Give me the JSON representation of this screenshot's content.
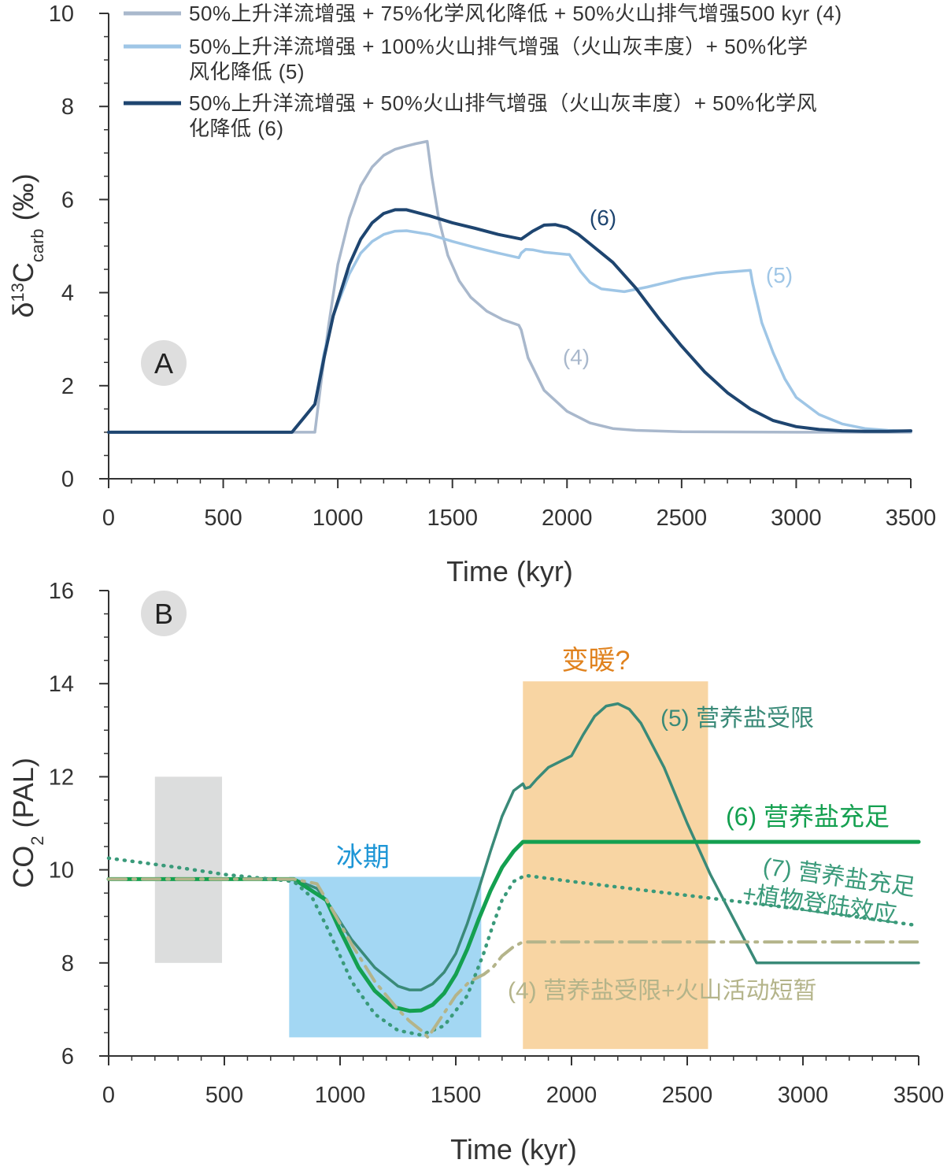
{
  "chart_data": [
    {
      "type": "line",
      "panel_label": "A",
      "xlabel": "Time (kyr)",
      "ylabel": {
        "base": "δ",
        "sup": "13",
        "main": "C",
        "sub": "carb",
        "unit": " (‰)"
      },
      "xlim": [
        0,
        3500
      ],
      "ylim": [
        0,
        10
      ],
      "xticks": [
        "0",
        "500",
        "1000",
        "1500",
        "2000",
        "2500",
        "3000",
        "3500"
      ],
      "yticks": [
        "0",
        "2",
        "4",
        "6",
        "8",
        "10"
      ],
      "legend": [
        {
          "series": 0,
          "lines": [
            "50%上升洋流增强 + 75%化学风化降低 + 50%火山排气增强500 kyr (4)"
          ]
        },
        {
          "series": 1,
          "lines": [
            "50%上升洋流增强 + 100%火山排气增强（火山灰丰度）+ 50%化学",
            "风化降低 (5)"
          ]
        },
        {
          "series": 2,
          "lines": [
            "50%上升洋流增强 + 50%火山排气增强（火山灰丰度）+ 50%化学风",
            "化降低 (6)"
          ]
        }
      ],
      "series": [
        {
          "name": "50%上升洋流增强 + 75%化学风化降低 + 50%火山排气增强500 kyr (4)",
          "label": "(4)",
          "color": "#a9b8cc",
          "x": [
            0,
            800,
            900,
            930,
            960,
            1000,
            1050,
            1100,
            1150,
            1200,
            1250,
            1300,
            1340,
            1390,
            1410,
            1440,
            1480,
            1530,
            1580,
            1650,
            1720,
            1790,
            1800,
            1830,
            1900,
            2000,
            2100,
            2200,
            2300,
            2500,
            3000,
            3500
          ],
          "y": [
            1.0,
            1.0,
            1.0,
            2.2,
            3.3,
            4.6,
            5.6,
            6.3,
            6.7,
            6.95,
            7.08,
            7.15,
            7.2,
            7.25,
            6.5,
            5.6,
            4.8,
            4.25,
            3.9,
            3.6,
            3.42,
            3.3,
            3.2,
            2.6,
            1.9,
            1.45,
            1.2,
            1.08,
            1.04,
            1.01,
            1.0,
            1.0
          ]
        },
        {
          "name": "50%上升洋流增强 + 100%火山排气增强（火山灰丰度）+ 50%化学风化降低 (5)",
          "label": "(5)",
          "color": "#9fc6e6",
          "x": [
            0,
            800,
            900,
            940,
            980,
            1050,
            1100,
            1150,
            1200,
            1250,
            1300,
            1400,
            1500,
            1600,
            1700,
            1790,
            1800,
            1820,
            1850,
            1900,
            2000,
            2010,
            2060,
            2100,
            2150,
            2250,
            2350,
            2500,
            2650,
            2800,
            2810,
            2850,
            2900,
            2950,
            3000,
            3100,
            3200,
            3300,
            3400,
            3500
          ],
          "y": [
            1.0,
            1.0,
            1.6,
            2.7,
            3.5,
            4.4,
            4.85,
            5.1,
            5.25,
            5.32,
            5.33,
            5.25,
            5.1,
            4.97,
            4.85,
            4.75,
            4.85,
            4.93,
            4.92,
            4.87,
            4.82,
            4.82,
            4.45,
            4.22,
            4.08,
            4.02,
            4.12,
            4.3,
            4.42,
            4.48,
            4.2,
            3.35,
            2.7,
            2.15,
            1.75,
            1.38,
            1.18,
            1.08,
            1.04,
            1.02
          ]
        },
        {
          "name": "50%上升洋流增强 + 50%火山排气增强（火山灰丰度）+ 50%化学风化降低 (6)",
          "label": "(6)",
          "color": "#1e4570",
          "x": [
            0,
            800,
            850,
            900,
            940,
            980,
            1050,
            1100,
            1150,
            1200,
            1250,
            1300,
            1400,
            1500,
            1600,
            1700,
            1800,
            1850,
            1900,
            1950,
            2000,
            2050,
            2100,
            2200,
            2300,
            2400,
            2500,
            2600,
            2700,
            2800,
            2900,
            3000,
            3100,
            3200,
            3300,
            3400,
            3500
          ],
          "y": [
            1.0,
            1.0,
            1.3,
            1.6,
            2.6,
            3.5,
            4.6,
            5.15,
            5.5,
            5.7,
            5.78,
            5.78,
            5.65,
            5.5,
            5.38,
            5.25,
            5.15,
            5.32,
            5.45,
            5.46,
            5.4,
            5.25,
            5.05,
            4.65,
            4.1,
            3.45,
            2.85,
            2.3,
            1.85,
            1.5,
            1.25,
            1.12,
            1.06,
            1.03,
            1.02,
            1.02,
            1.03
          ]
        }
      ]
    },
    {
      "type": "line",
      "panel_label": "B",
      "xlabel": "Time (kyr)",
      "ylabel": {
        "main": "CO",
        "sub": "2",
        "unit": " (PAL)"
      },
      "xlim": [
        0,
        3500
      ],
      "ylim": [
        6,
        16
      ],
      "xticks": [
        "0",
        "500",
        "1000",
        "1500",
        "2000",
        "2500",
        "3000",
        "3500"
      ],
      "yticks": [
        "6",
        "8",
        "10",
        "12",
        "14",
        "16"
      ],
      "shaded_regions": [
        {
          "label": "",
          "color": "#dcdddd",
          "x": [
            200,
            490
          ],
          "y": [
            8.0,
            12.0
          ]
        },
        {
          "label": "冰期",
          "label_color": "#1e96d6",
          "color": "#a3d7f3",
          "x": [
            780,
            1610
          ],
          "y": [
            6.4,
            9.85
          ]
        },
        {
          "label": "变暖?",
          "label_color": "#e0821e",
          "color": "#f8d5a3",
          "x": [
            1790,
            2590
          ],
          "y": [
            6.15,
            14.05
          ]
        }
      ],
      "series": [
        {
          "label": "(5) 营养盐受限",
          "color": "#3a8a78",
          "style": "solid",
          "x": [
            0,
            800,
            900,
            960,
            1050,
            1150,
            1250,
            1300,
            1350,
            1400,
            1450,
            1500,
            1550,
            1600,
            1650,
            1700,
            1750,
            1790,
            1800,
            1820,
            1850,
            1900,
            2000,
            2050,
            2100,
            2150,
            2200,
            2250,
            2300,
            2400,
            2500,
            2600,
            2700,
            2800,
            2900,
            3000,
            3500
          ],
          "y": [
            9.8,
            9.8,
            9.6,
            9.2,
            8.5,
            7.9,
            7.5,
            7.42,
            7.42,
            7.55,
            7.8,
            8.2,
            8.85,
            9.6,
            10.4,
            11.15,
            11.7,
            11.85,
            11.75,
            11.78,
            11.95,
            12.2,
            12.45,
            12.9,
            13.3,
            13.52,
            13.57,
            13.45,
            13.15,
            12.2,
            11.0,
            9.9,
            8.95,
            8.0,
            8.0,
            8.0,
            8.0
          ]
        },
        {
          "label": "(6) 营养盐充足",
          "color": "#14a050",
          "style": "solid",
          "x": [
            0,
            800,
            940,
            1000,
            1080,
            1150,
            1230,
            1300,
            1350,
            1400,
            1450,
            1500,
            1550,
            1600,
            1650,
            1700,
            1750,
            1790,
            1800,
            2000,
            3500
          ],
          "y": [
            9.8,
            9.8,
            9.35,
            8.7,
            7.9,
            7.4,
            7.05,
            6.97,
            6.98,
            7.1,
            7.35,
            7.75,
            8.3,
            8.95,
            9.55,
            10.05,
            10.4,
            10.6,
            10.6,
            10.6,
            10.6
          ]
        },
        {
          "label": "(7) 营养盐充足\n+植物登陆效应",
          "color": "#3a9a7a",
          "style": "dotted",
          "x": [
            0,
            300,
            500,
            700,
            800,
            880,
            950,
            1050,
            1150,
            1250,
            1350,
            1450,
            1550,
            1620,
            1660,
            1700,
            1750,
            1800,
            2000,
            2500,
            3000,
            3500
          ],
          "y": [
            10.25,
            10.05,
            9.9,
            9.8,
            9.75,
            9.4,
            8.7,
            7.6,
            6.9,
            6.55,
            6.45,
            6.65,
            7.3,
            8.2,
            8.8,
            9.35,
            9.75,
            9.88,
            9.75,
            9.45,
            9.15,
            8.8
          ]
        },
        {
          "label": "(4) 营养盐受限+火山活动短暂",
          "color": "#b4b48a",
          "style": "dashdot",
          "x": [
            0,
            800,
            900,
            960,
            1050,
            1150,
            1250,
            1300,
            1350,
            1380,
            1420,
            1500,
            1560,
            1620,
            1660,
            1700,
            1750,
            1790,
            1800,
            2000,
            2500,
            3000,
            3500
          ],
          "y": [
            9.8,
            9.8,
            9.7,
            9.2,
            8.4,
            7.6,
            7.0,
            6.75,
            6.55,
            6.4,
            6.7,
            7.3,
            7.6,
            7.75,
            7.9,
            8.15,
            8.35,
            8.45,
            8.45,
            8.45,
            8.45,
            8.45,
            8.45
          ]
        }
      ]
    }
  ]
}
